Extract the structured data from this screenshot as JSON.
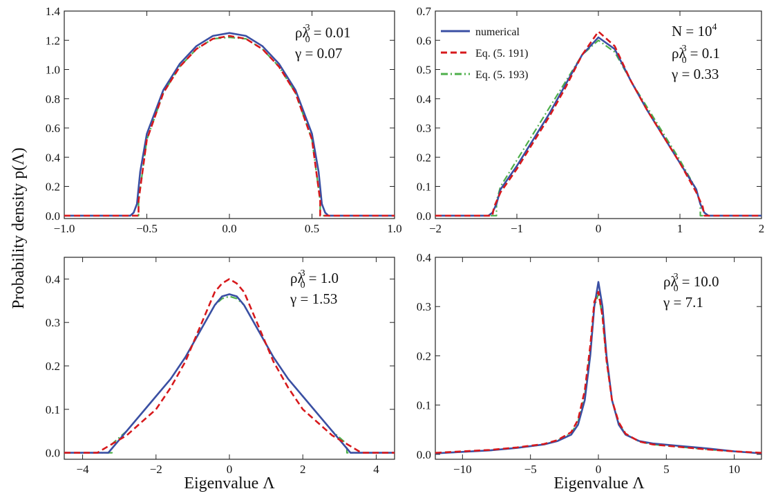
{
  "figure": {
    "ylabel": "Probability density p(Λ)",
    "xlabel": "Eigenvalue Λ"
  },
  "colors": {
    "numerical": "#3a4fa3",
    "eq191": "#d7191c",
    "eq193": "#4daf4a"
  },
  "chart_data": [
    {
      "type": "line",
      "panel": "top-left",
      "xlim": [
        -1.0,
        1.0
      ],
      "ylim": [
        -0.02,
        1.4
      ],
      "xticks": [
        -1.0,
        -0.5,
        0.0,
        0.5,
        1.0
      ],
      "xtick_labels": [
        "−1.0",
        "−0.5",
        "0.0",
        "0.5",
        "1.0"
      ],
      "yticks": [
        0.0,
        0.2,
        0.4,
        0.6,
        0.8,
        1.0,
        1.2,
        1.4
      ],
      "ytick_labels": [
        "0.0",
        "0.2",
        "0.4",
        "0.6",
        "0.8",
        "1.0",
        "1.2",
        "1.4"
      ],
      "annotations": {
        "rho": "0.01",
        "gamma": "0.07"
      },
      "series": [
        {
          "name": "numerical",
          "x": [
            -1.0,
            -0.6,
            -0.58,
            -0.56,
            -0.54,
            -0.5,
            -0.4,
            -0.3,
            -0.2,
            -0.1,
            0.0,
            0.1,
            0.2,
            0.3,
            0.4,
            0.5,
            0.54,
            0.56,
            0.58,
            0.6,
            1.0
          ],
          "y": [
            0.0,
            0.0,
            0.02,
            0.08,
            0.3,
            0.56,
            0.86,
            1.04,
            1.16,
            1.23,
            1.25,
            1.23,
            1.16,
            1.04,
            0.86,
            0.56,
            0.3,
            0.08,
            0.02,
            0.0,
            0.0
          ]
        },
        {
          "name": "Eq. (5. 191)",
          "x": [
            -1.0,
            -0.55,
            -0.55,
            -0.5,
            -0.4,
            -0.3,
            -0.2,
            -0.1,
            0.0,
            0.1,
            0.2,
            0.3,
            0.4,
            0.5,
            0.55,
            0.55,
            1.0
          ],
          "y": [
            0.0,
            0.0,
            0.1,
            0.52,
            0.84,
            1.02,
            1.14,
            1.21,
            1.23,
            1.21,
            1.14,
            1.02,
            0.84,
            0.52,
            0.1,
            0.0,
            0.0
          ]
        },
        {
          "name": "Eq. (5. 193)",
          "x": [
            -1.0,
            -0.55,
            -0.55,
            -0.5,
            -0.4,
            -0.3,
            -0.2,
            -0.1,
            0.0,
            0.1,
            0.2,
            0.3,
            0.4,
            0.5,
            0.55,
            0.55,
            1.0
          ],
          "y": [
            0.0,
            0.0,
            0.1,
            0.52,
            0.84,
            1.02,
            1.14,
            1.21,
            1.22,
            1.21,
            1.14,
            1.02,
            0.84,
            0.52,
            0.1,
            0.0,
            0.0
          ]
        }
      ]
    },
    {
      "type": "line",
      "panel": "top-right",
      "xlim": [
        -2,
        2
      ],
      "ylim": [
        -0.01,
        0.7
      ],
      "xticks": [
        -2,
        -1,
        0,
        1,
        2
      ],
      "xtick_labels": [
        "−2",
        "−1",
        "0",
        "1",
        "2"
      ],
      "yticks": [
        0.0,
        0.1,
        0.2,
        0.3,
        0.4,
        0.5,
        0.6,
        0.7
      ],
      "ytick_labels": [
        "0.0",
        "0.1",
        "0.2",
        "0.3",
        "0.4",
        "0.5",
        "0.6",
        "0.7"
      ],
      "annotations": {
        "n": "N = 10",
        "n_exp": "4",
        "rho": "0.1",
        "gamma": "0.33"
      },
      "legend": [
        "numerical",
        "Eq. (5. 191)",
        "Eq. (5. 193)"
      ],
      "series": [
        {
          "name": "numerical",
          "x": [
            -2,
            -1.35,
            -1.3,
            -1.25,
            -1.2,
            -1.0,
            -0.8,
            -0.6,
            -0.4,
            -0.2,
            0.0,
            0.2,
            0.4,
            0.6,
            0.8,
            1.0,
            1.2,
            1.25,
            1.3,
            1.35,
            2
          ],
          "y": [
            0.0,
            0.0,
            0.01,
            0.04,
            0.09,
            0.17,
            0.26,
            0.35,
            0.45,
            0.55,
            0.61,
            0.57,
            0.46,
            0.36,
            0.27,
            0.18,
            0.09,
            0.04,
            0.01,
            0.0,
            0.0
          ]
        },
        {
          "name": "Eq. (5. 191)",
          "x": [
            -2,
            -1.3,
            -1.28,
            -1.2,
            -1.0,
            -0.8,
            -0.6,
            -0.4,
            -0.2,
            0.0,
            0.2,
            0.4,
            0.6,
            0.8,
            1.0,
            1.2,
            1.28,
            1.3,
            2
          ],
          "y": [
            0.0,
            0.0,
            0.03,
            0.08,
            0.16,
            0.25,
            0.34,
            0.44,
            0.55,
            0.63,
            0.58,
            0.46,
            0.36,
            0.27,
            0.18,
            0.08,
            0.03,
            0.0,
            0.0
          ]
        },
        {
          "name": "Eq. (5. 193)",
          "x": [
            -2,
            -1.25,
            -1.25,
            -1.2,
            -1.0,
            -0.8,
            -0.6,
            -0.4,
            -0.2,
            0.0,
            0.2,
            0.4,
            0.6,
            0.8,
            1.0,
            1.2,
            1.25,
            1.25,
            2
          ],
          "y": [
            0.0,
            0.0,
            0.05,
            0.1,
            0.19,
            0.28,
            0.37,
            0.46,
            0.55,
            0.6,
            0.56,
            0.46,
            0.37,
            0.28,
            0.19,
            0.09,
            0.04,
            0.0,
            0.0
          ]
        }
      ]
    },
    {
      "type": "line",
      "panel": "bottom-left",
      "xlim": [
        -4.5,
        4.5
      ],
      "ylim": [
        -0.015,
        0.45
      ],
      "xticks": [
        -4,
        -2,
        0,
        2,
        4
      ],
      "xtick_labels": [
        "−4",
        "−2",
        "0",
        "2",
        "4"
      ],
      "yticks": [
        0.0,
        0.1,
        0.2,
        0.3,
        0.4
      ],
      "ytick_labels": [
        "0.0",
        "0.1",
        "0.2",
        "0.3",
        "0.4"
      ],
      "annotations": {
        "rho": "1.0",
        "gamma": "1.53"
      },
      "series": [
        {
          "name": "numerical",
          "x": [
            -4.5,
            -3.3,
            -3.1,
            -2.8,
            -2.4,
            -2.0,
            -1.6,
            -1.2,
            -0.8,
            -0.4,
            -0.2,
            0.0,
            0.2,
            0.4,
            0.8,
            1.2,
            1.6,
            2.0,
            2.4,
            2.8,
            3.1,
            3.3,
            4.5
          ],
          "y": [
            0.0,
            0.0,
            0.02,
            0.05,
            0.09,
            0.13,
            0.17,
            0.22,
            0.28,
            0.34,
            0.36,
            0.365,
            0.36,
            0.34,
            0.28,
            0.22,
            0.17,
            0.13,
            0.09,
            0.05,
            0.02,
            0.0,
            0.0
          ]
        },
        {
          "name": "Eq. (5. 191)",
          "x": [
            -4.5,
            -3.6,
            -3.2,
            -2.8,
            -2.4,
            -2.0,
            -1.6,
            -1.2,
            -0.8,
            -0.4,
            -0.2,
            0.0,
            0.2,
            0.4,
            0.8,
            1.2,
            1.6,
            2.0,
            2.4,
            2.8,
            3.2,
            3.6,
            4.5
          ],
          "y": [
            0.0,
            0.0,
            0.02,
            0.04,
            0.07,
            0.1,
            0.15,
            0.21,
            0.29,
            0.37,
            0.39,
            0.4,
            0.39,
            0.37,
            0.29,
            0.21,
            0.15,
            0.1,
            0.07,
            0.04,
            0.02,
            0.0,
            0.0
          ]
        },
        {
          "name": "Eq. (5. 193)",
          "x": [
            -4.5,
            -3.2,
            -3.2,
            -2.8,
            -2.4,
            -2.0,
            -1.6,
            -1.2,
            -0.8,
            -0.4,
            -0.2,
            0.0,
            0.2,
            0.4,
            0.8,
            1.2,
            1.6,
            2.0,
            2.4,
            2.8,
            3.2,
            3.2,
            4.5
          ],
          "y": [
            0.0,
            0.0,
            0.02,
            0.05,
            0.09,
            0.13,
            0.17,
            0.22,
            0.28,
            0.34,
            0.355,
            0.36,
            0.355,
            0.34,
            0.28,
            0.22,
            0.17,
            0.13,
            0.09,
            0.05,
            0.02,
            0.0,
            0.0
          ]
        }
      ]
    },
    {
      "type": "line",
      "panel": "bottom-right",
      "xlim": [
        -12,
        12
      ],
      "ylim": [
        -0.01,
        0.4
      ],
      "xticks": [
        -10,
        -5,
        0,
        5,
        10
      ],
      "xtick_labels": [
        "−10",
        "−5",
        "0",
        "5",
        "10"
      ],
      "yticks": [
        0.0,
        0.1,
        0.2,
        0.3,
        0.4
      ],
      "ytick_labels": [
        "0.0",
        "0.1",
        "0.2",
        "0.3",
        "0.4"
      ],
      "annotations": {
        "rho": "10.0",
        "gamma": "7.1"
      },
      "series": [
        {
          "name": "numerical",
          "x": [
            -12,
            -10,
            -8,
            -6,
            -4,
            -3,
            -2,
            -1.5,
            -1.0,
            -0.6,
            -0.3,
            0.0,
            0.3,
            0.6,
            1.0,
            1.5,
            2,
            3,
            4,
            6,
            8,
            10,
            12
          ],
          "y": [
            0.002,
            0.005,
            0.008,
            0.013,
            0.02,
            0.027,
            0.04,
            0.06,
            0.11,
            0.2,
            0.3,
            0.35,
            0.3,
            0.2,
            0.11,
            0.06,
            0.04,
            0.027,
            0.022,
            0.017,
            0.012,
            0.006,
            0.002
          ]
        },
        {
          "name": "Eq. (5. 191)",
          "x": [
            -12,
            -10,
            -8,
            -6,
            -4,
            -3,
            -2,
            -1.5,
            -1.0,
            -0.6,
            -0.3,
            0.0,
            0.3,
            0.6,
            1.0,
            1.5,
            2,
            3,
            4,
            6,
            8,
            10,
            12
          ],
          "y": [
            0.003,
            0.006,
            0.009,
            0.014,
            0.021,
            0.029,
            0.045,
            0.07,
            0.13,
            0.22,
            0.31,
            0.33,
            0.28,
            0.19,
            0.11,
            0.065,
            0.042,
            0.026,
            0.02,
            0.015,
            0.01,
            0.006,
            0.003
          ]
        },
        {
          "name": "Eq. (5. 193)",
          "x": [
            -12,
            -10,
            -8,
            -6,
            -4,
            -3,
            -2,
            -1.5,
            -1.0,
            -0.6,
            -0.3,
            0.0,
            0.3,
            0.6,
            1.0,
            1.5,
            2,
            3,
            4,
            6,
            8,
            10,
            12
          ],
          "y": [
            0.002,
            0.005,
            0.008,
            0.013,
            0.02,
            0.028,
            0.043,
            0.066,
            0.12,
            0.21,
            0.3,
            0.325,
            0.28,
            0.19,
            0.11,
            0.063,
            0.041,
            0.026,
            0.02,
            0.015,
            0.01,
            0.006,
            0.002
          ]
        }
      ]
    }
  ]
}
